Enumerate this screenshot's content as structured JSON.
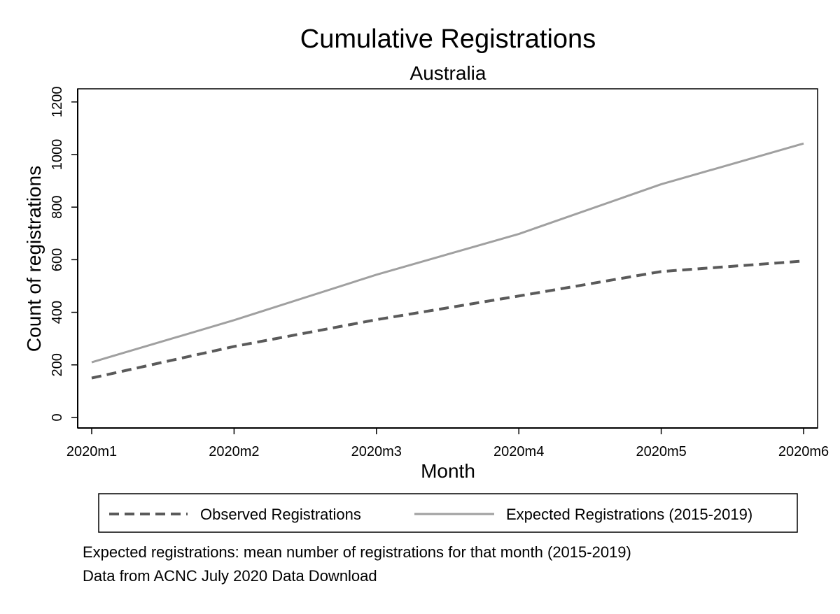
{
  "chart_data": {
    "type": "line",
    "title": "Cumulative Registrations",
    "subtitle": "Australia",
    "xlabel": "Month",
    "ylabel": "Count of registrations",
    "categories": [
      "2020m1",
      "2020m2",
      "2020m3",
      "2020m4",
      "2020m5",
      "2020m6"
    ],
    "yticks": [
      0,
      200,
      400,
      600,
      800,
      1000,
      1200
    ],
    "ylim": [
      -40,
      1250
    ],
    "grid": false,
    "legend_position": "bottom",
    "series": [
      {
        "name": "Observed Registrations",
        "values": [
          150,
          270,
          372,
          462,
          555,
          595
        ],
        "color": "#5a5a5a",
        "style": "dashed"
      },
      {
        "name": "Expected Registrations (2015-2019)",
        "values": [
          210,
          370,
          543,
          698,
          887,
          1042
        ],
        "color": "#a0a0a0",
        "style": "solid"
      }
    ],
    "notes": [
      "Expected registrations: mean number of registrations for that month (2015-2019)",
      "Data from ACNC July 2020 Data Download"
    ]
  }
}
